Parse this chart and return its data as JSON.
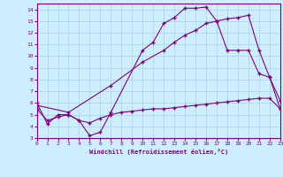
{
  "xlabel": "Windchill (Refroidissement éolien,°C)",
  "background_color": "#cceeff",
  "grid_color": "#aad4dd",
  "line_color": "#800080",
  "xlim": [
    0,
    23
  ],
  "ylim": [
    3,
    14.5
  ],
  "xticks": [
    0,
    1,
    2,
    3,
    4,
    5,
    6,
    7,
    8,
    9,
    10,
    11,
    12,
    13,
    14,
    15,
    16,
    17,
    18,
    19,
    20,
    21,
    22,
    23
  ],
  "yticks": [
    3,
    4,
    5,
    6,
    7,
    8,
    9,
    10,
    11,
    12,
    13,
    14
  ],
  "line1_x": [
    0,
    1,
    2,
    3,
    4,
    5,
    6,
    7,
    10,
    11,
    12,
    13,
    14,
    15,
    16,
    17,
    18,
    19,
    20,
    21,
    22,
    23
  ],
  "line1_y": [
    6.0,
    4.2,
    5.0,
    5.0,
    4.5,
    3.2,
    3.5,
    5.2,
    10.5,
    11.2,
    12.8,
    13.3,
    14.1,
    14.1,
    14.2,
    13.0,
    10.5,
    10.5,
    10.5,
    8.5,
    8.2,
    6.2
  ],
  "line2_x": [
    0,
    3,
    7,
    10,
    12,
    13,
    14,
    15,
    16,
    17,
    18,
    19,
    20,
    21,
    22,
    23
  ],
  "line2_y": [
    5.8,
    5.2,
    7.5,
    9.5,
    10.5,
    11.2,
    11.8,
    12.2,
    12.8,
    13.0,
    13.2,
    13.3,
    13.5,
    10.5,
    8.2,
    5.5
  ],
  "line3_x": [
    0,
    1,
    2,
    3,
    4,
    5,
    6,
    7,
    8,
    9,
    10,
    11,
    12,
    13,
    14,
    15,
    16,
    17,
    18,
    19,
    20,
    21,
    22,
    23
  ],
  "line3_y": [
    5.5,
    4.5,
    4.8,
    5.0,
    4.5,
    4.3,
    4.7,
    5.0,
    5.2,
    5.3,
    5.4,
    5.5,
    5.5,
    5.6,
    5.7,
    5.8,
    5.9,
    6.0,
    6.1,
    6.2,
    6.3,
    6.4,
    6.4,
    5.5
  ]
}
